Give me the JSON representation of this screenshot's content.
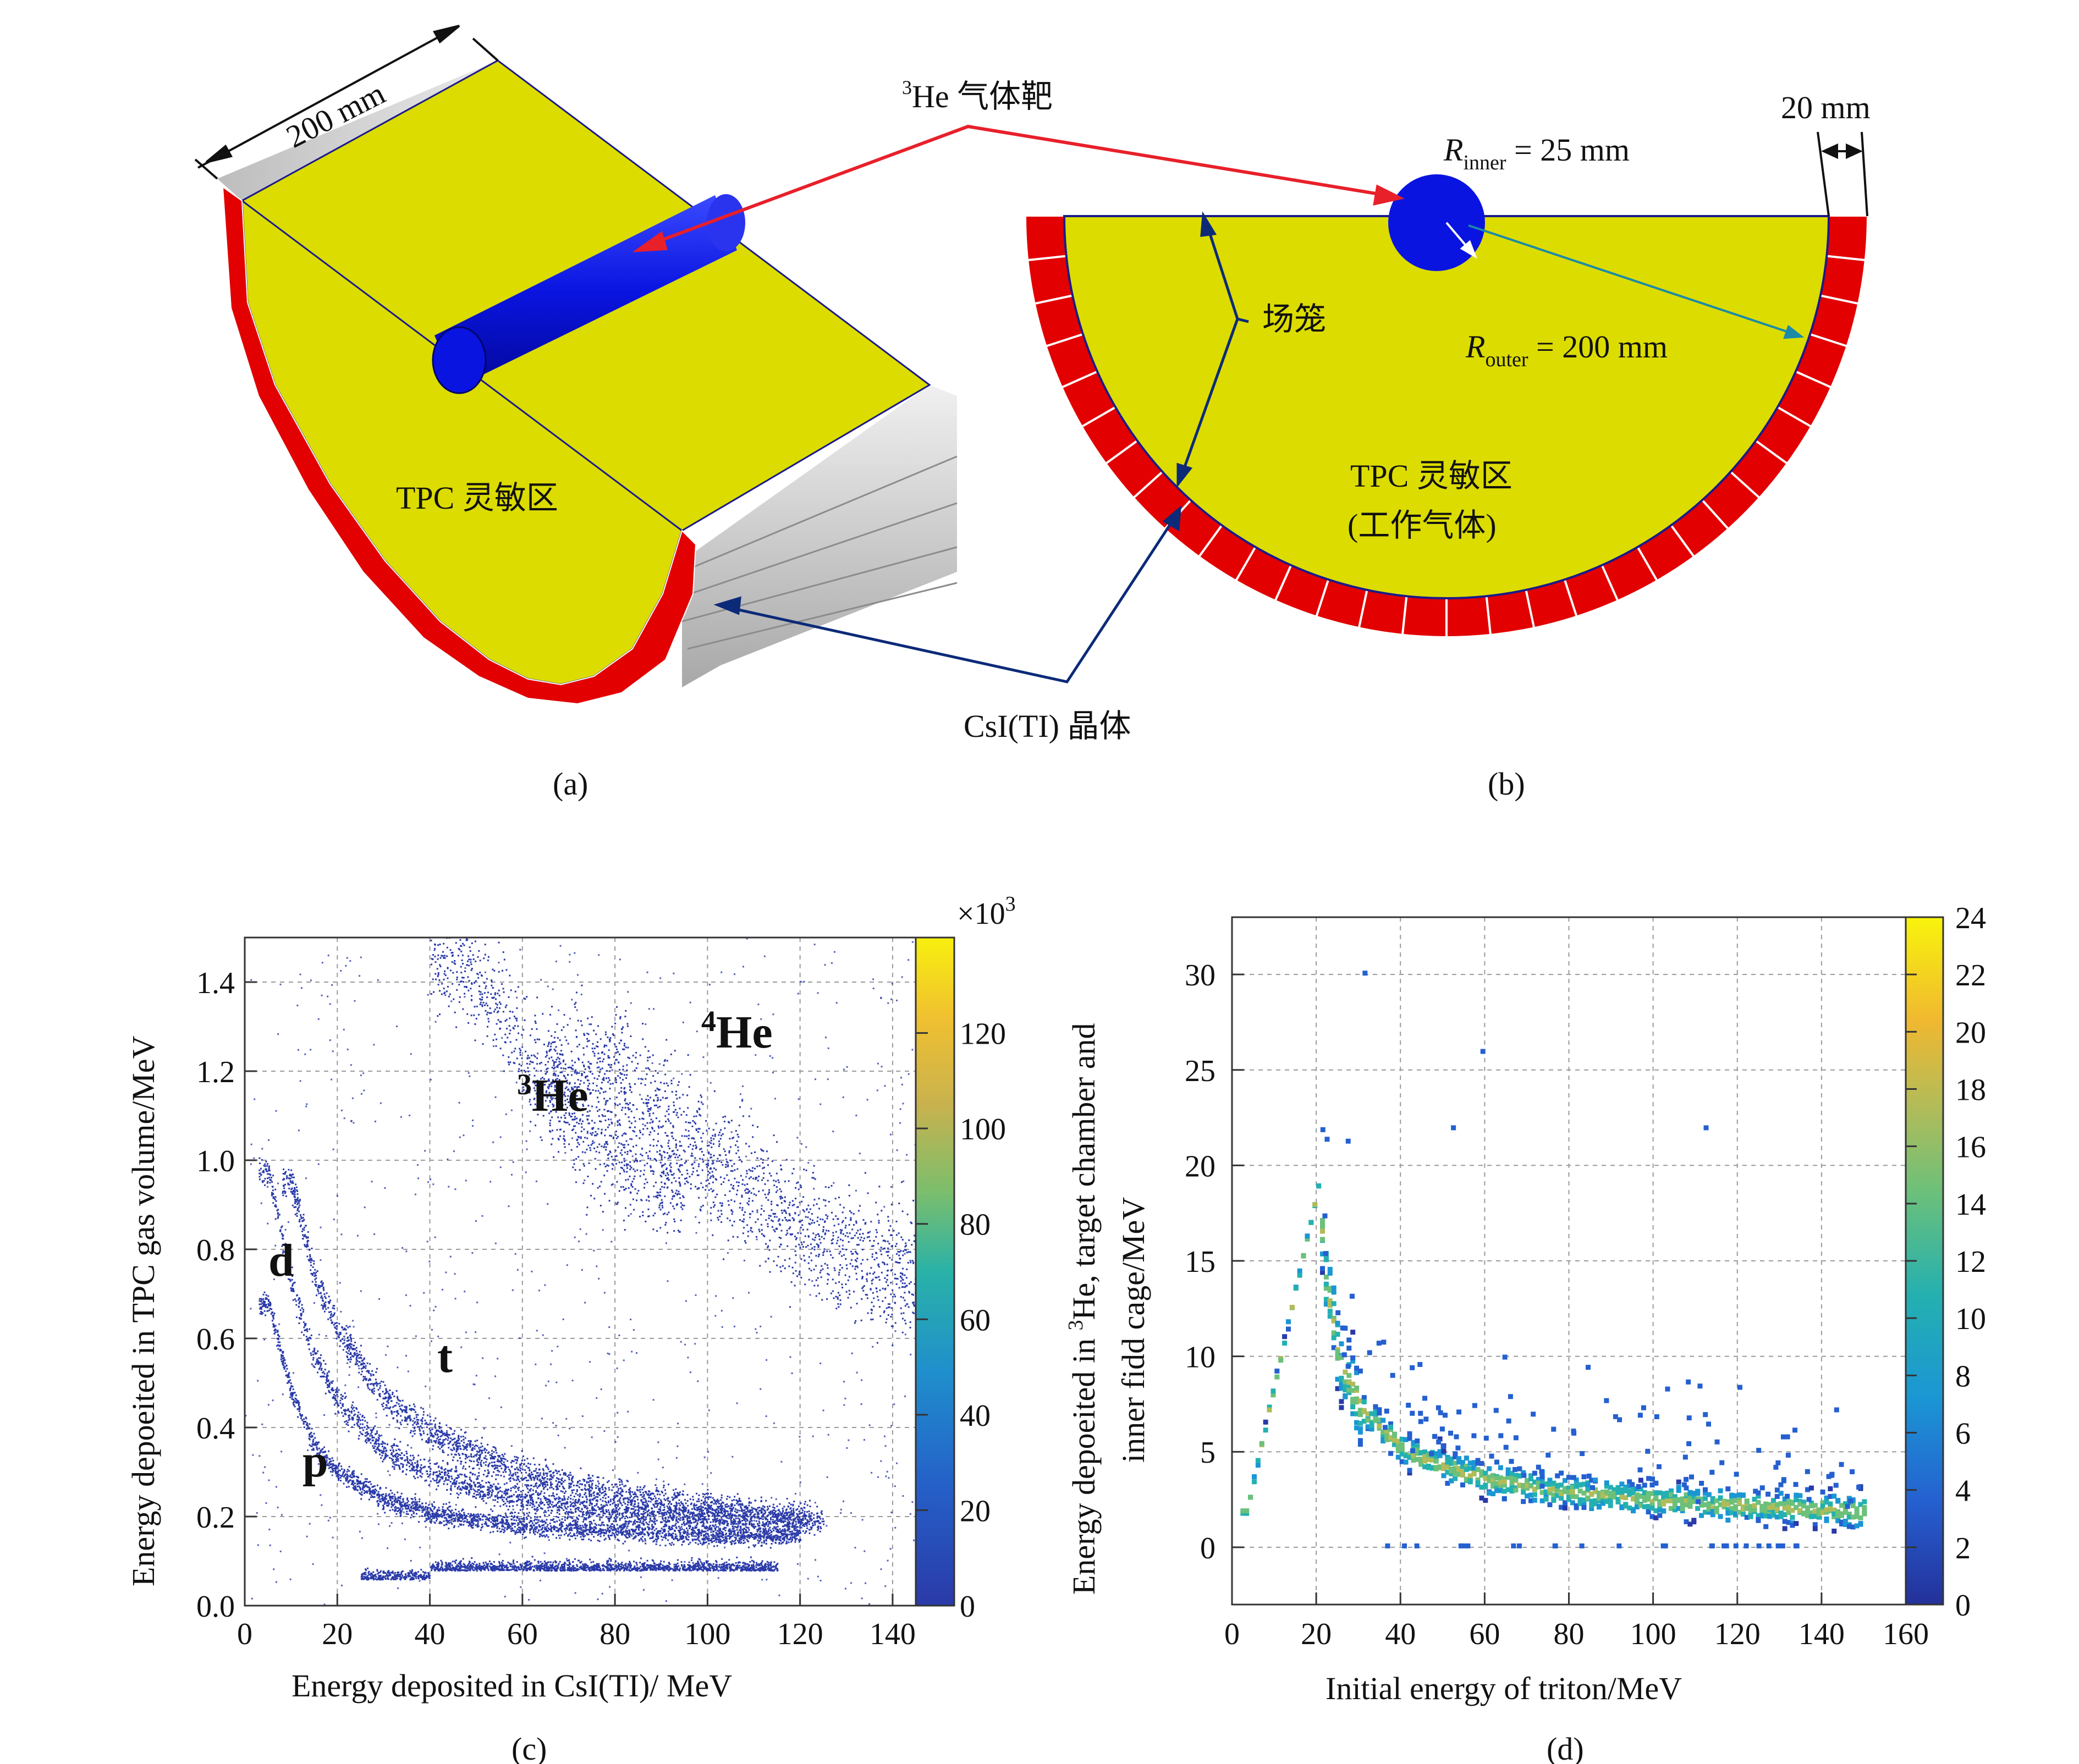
{
  "figure_a": {
    "caption": "(a)",
    "dimension_label": "200 mm",
    "region_label": "TPC 灵敏区"
  },
  "figure_b": {
    "caption": "(b)",
    "dimension_label": "20 mm",
    "r_inner_symbol": "R",
    "r_inner_sub": "inner",
    "r_inner_value": " = 25 mm",
    "r_outer_symbol": "R",
    "r_outer_sub": "outer",
    "r_outer_value": " = 200 mm",
    "region_label_1": "TPC 灵敏区",
    "region_label_2": "(工作气体)"
  },
  "annotations": {
    "target_sup": "3",
    "target_label": "He 气体靶",
    "field_cage_label": "场笼",
    "crystal_label": "CsI(TI) 晶体"
  },
  "colors": {
    "tpc_yellow": "#dcdc00",
    "crystal_red": "#e20000",
    "target_blue": "#0a14e0",
    "arrow_red": "#e8202a",
    "arrow_navy": "#0c2a78",
    "arrow_teal": "#1a8aa8",
    "scatter_blue": "#2a3aa8"
  },
  "chart_c": {
    "caption": "(c)",
    "x_label": "Energy deposited in CsI(TI)/ MeV",
    "y_label": "Energy depoeited in TPC gas volume/MeV",
    "colorbar_multiplier": "×10",
    "colorbar_multiplier_exp": "3",
    "x_ticks": [
      "0",
      "20",
      "40",
      "60",
      "80",
      "100",
      "120",
      "140"
    ],
    "y_ticks": [
      "0.0",
      "0.2",
      "0.4",
      "0.6",
      "0.8",
      "1.0",
      "1.2",
      "1.4"
    ],
    "colorbar_ticks": [
      "0",
      "20",
      "40",
      "60",
      "80",
      "100",
      "120"
    ],
    "band_labels": {
      "d": "d",
      "t": "t",
      "p": "p",
      "he3_sup": "3",
      "he3": "He",
      "he4_sup": "4",
      "he4": "He"
    }
  },
  "chart_d": {
    "caption": "(d)",
    "x_label": "Initial energy of triton/MeV",
    "y_label_line1_pre": "Energy depoeited in ",
    "y_label_line1_sup": "3",
    "y_label_line1_post": "He, target chamber and",
    "y_label_line2": "inner fidd cage/MeV",
    "x_ticks": [
      "0",
      "20",
      "40",
      "60",
      "80",
      "100",
      "120",
      "140",
      "160"
    ],
    "y_ticks": [
      "0",
      "5",
      "10",
      "15",
      "20",
      "25",
      "30"
    ],
    "colorbar_ticks": [
      "0",
      "2",
      "4",
      "6",
      "8",
      "10",
      "12",
      "14",
      "16",
      "18",
      "20",
      "22",
      "24"
    ]
  },
  "chart_data": [
    {
      "type": "scatter",
      "title": "",
      "xlabel": "Energy deposited in CsI(TI)/ MeV",
      "ylabel": "Energy depoeited in TPC gas volume/MeV",
      "xlim": [
        0,
        145
      ],
      "ylim": [
        0,
        1.5
      ],
      "grid": true,
      "colorbar": {
        "range": [
          0,
          140
        ],
        "multiplier": "×10^3"
      },
      "series": [
        {
          "name": "p",
          "x": [
            5,
            10,
            15,
            20,
            30,
            40,
            60,
            80,
            100,
            120
          ],
          "y": [
            0.68,
            0.48,
            0.36,
            0.3,
            0.24,
            0.21,
            0.18,
            0.17,
            0.16,
            0.16
          ]
        },
        {
          "name": "d",
          "x": [
            5,
            10,
            15,
            20,
            30,
            40,
            60,
            80,
            100,
            120
          ],
          "y": [
            0.98,
            0.72,
            0.56,
            0.46,
            0.35,
            0.3,
            0.24,
            0.21,
            0.2,
            0.19
          ]
        },
        {
          "name": "t",
          "x": [
            10,
            15,
            20,
            30,
            40,
            60,
            80,
            100,
            120
          ],
          "y": [
            0.95,
            0.74,
            0.62,
            0.47,
            0.39,
            0.3,
            0.25,
            0.22,
            0.2
          ]
        },
        {
          "name": "3He",
          "x": [
            45,
            55,
            60,
            70,
            80,
            90
          ],
          "y": [
            1.45,
            1.35,
            1.25,
            1.1,
            1.0,
            0.95
          ]
        },
        {
          "name": "4He",
          "x": [
            80,
            100,
            120,
            140
          ],
          "y": [
            1.2,
            1.0,
            0.85,
            0.75
          ]
        }
      ]
    },
    {
      "type": "heatmap",
      "title": "",
      "xlabel": "Initial energy of triton/MeV",
      "ylabel": "Energy depoeited in 3He, target chamber and inner fidd cage/MeV",
      "xlim": [
        0,
        160
      ],
      "ylim": [
        -3,
        33
      ],
      "grid": true,
      "colorbar": {
        "range": [
          0,
          24
        ]
      },
      "series": [
        {
          "name": "",
          "x": [
            3,
            6,
            10,
            14,
            18,
            20,
            22,
            25,
            30,
            40,
            50,
            60,
            80,
            100,
            120,
            140,
            150
          ],
          "y": [
            2,
            5,
            9,
            13,
            17,
            19,
            14,
            10,
            7.5,
            5.3,
            4.3,
            3.7,
            3.0,
            2.6,
            2.3,
            2.1,
            2.0
          ]
        }
      ]
    }
  ]
}
